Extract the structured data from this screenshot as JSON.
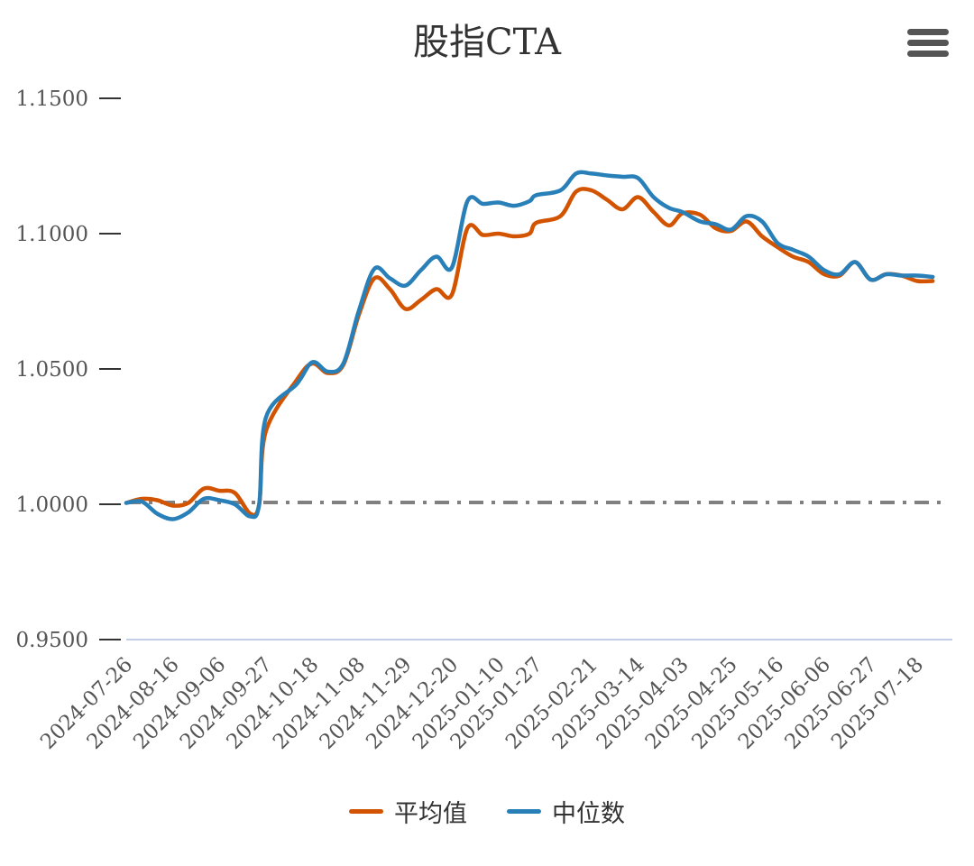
{
  "chart_data": {
    "type": "line",
    "title": "股指CTA",
    "xlabel": "",
    "ylabel": "",
    "ylim": [
      0.95,
      1.15
    ],
    "yticks": [
      "0.9500",
      "1.0000",
      "1.0500",
      "1.1000",
      "1.1500"
    ],
    "xticks": [
      "2024-07-26",
      "2024-08-16",
      "2024-09-06",
      "2024-09-27",
      "2024-10-18",
      "2024-11-08",
      "2024-11-29",
      "2024-12-20",
      "2025-01-10",
      "2025-01-27",
      "2025-02-21",
      "2025-03-14",
      "2025-04-03",
      "2025-04-25",
      "2025-05-16",
      "2025-06-06",
      "2025-06-27",
      "2025-07-18"
    ],
    "reference_line": {
      "y": 1.0,
      "style": "dash-dot",
      "color": "#808080"
    },
    "legend_position": "bottom-center",
    "grid": false,
    "series": [
      {
        "name": "平均值",
        "color": "#d35400",
        "x": [
          "2024-07-26",
          "2024-08-02",
          "2024-08-09",
          "2024-08-16",
          "2024-08-23",
          "2024-08-30",
          "2024-09-06",
          "2024-09-13",
          "2024-09-20",
          "2024-09-24",
          "2024-09-27",
          "2024-10-11",
          "2024-10-18",
          "2024-10-25",
          "2024-11-01",
          "2024-11-08",
          "2024-11-15",
          "2024-11-22",
          "2024-11-29",
          "2024-12-06",
          "2024-12-13",
          "2024-12-20",
          "2024-12-27",
          "2025-01-03",
          "2025-01-10",
          "2025-01-17",
          "2025-01-24",
          "2025-01-27",
          "2025-02-07",
          "2025-02-14",
          "2025-02-21",
          "2025-02-28",
          "2025-03-07",
          "2025-03-14",
          "2025-03-21",
          "2025-03-28",
          "2025-04-03",
          "2025-04-11",
          "2025-04-18",
          "2025-04-25",
          "2025-05-02",
          "2025-05-09",
          "2025-05-16",
          "2025-05-23",
          "2025-05-30",
          "2025-06-06",
          "2025-06-13",
          "2025-06-20",
          "2025-06-27",
          "2025-07-04",
          "2025-07-11",
          "2025-07-18",
          "2025-07-25"
        ],
        "values": [
          1.0005,
          1.002,
          1.0015,
          0.9995,
          1.0005,
          1.0058,
          1.005,
          1.0042,
          0.9965,
          1.0,
          1.027,
          1.046,
          1.052,
          1.0485,
          1.0515,
          1.07,
          1.0835,
          1.0795,
          1.0722,
          1.0755,
          1.0795,
          1.0775,
          1.102,
          1.0995,
          1.1,
          1.099,
          1.1,
          1.104,
          1.1065,
          1.1155,
          1.116,
          1.1125,
          1.109,
          1.1135,
          1.108,
          1.103,
          1.1075,
          1.107,
          1.102,
          1.101,
          1.1045,
          1.099,
          1.095,
          1.0915,
          1.0895,
          1.085,
          1.0845,
          1.0895,
          1.083,
          1.085,
          1.0845,
          1.0825,
          1.0825
        ]
      },
      {
        "name": "中位数",
        "color": "#2980b9",
        "x": [
          "2024-07-26",
          "2024-08-02",
          "2024-08-09",
          "2024-08-16",
          "2024-08-23",
          "2024-08-30",
          "2024-09-06",
          "2024-09-13",
          "2024-09-20",
          "2024-09-24",
          "2024-09-27",
          "2024-10-11",
          "2024-10-18",
          "2024-10-25",
          "2024-11-01",
          "2024-11-08",
          "2024-11-15",
          "2024-11-22",
          "2024-11-29",
          "2024-12-06",
          "2024-12-13",
          "2024-12-20",
          "2024-12-27",
          "2025-01-03",
          "2025-01-10",
          "2025-01-17",
          "2025-01-24",
          "2025-01-27",
          "2025-02-07",
          "2025-02-14",
          "2025-02-21",
          "2025-02-28",
          "2025-03-07",
          "2025-03-14",
          "2025-03-21",
          "2025-03-28",
          "2025-04-03",
          "2025-04-11",
          "2025-04-18",
          "2025-04-25",
          "2025-05-02",
          "2025-05-09",
          "2025-05-16",
          "2025-05-23",
          "2025-05-30",
          "2025-06-06",
          "2025-06-13",
          "2025-06-20",
          "2025-06-27",
          "2025-07-04",
          "2025-07-11",
          "2025-07-18",
          "2025-07-25"
        ],
        "values": [
          1.0005,
          1.001,
          0.9965,
          0.9945,
          0.997,
          1.002,
          1.0015,
          1.0,
          0.9955,
          1.0,
          1.032,
          1.0445,
          1.0525,
          1.049,
          1.052,
          1.0715,
          1.087,
          1.0835,
          1.0808,
          1.0865,
          1.0915,
          1.0875,
          1.112,
          1.111,
          1.1115,
          1.1103,
          1.112,
          1.1142,
          1.116,
          1.1222,
          1.1222,
          1.1215,
          1.121,
          1.1205,
          1.1135,
          1.1095,
          1.108,
          1.1045,
          1.1035,
          1.1015,
          1.1065,
          1.1045,
          1.0965,
          1.094,
          1.0915,
          1.0865,
          1.085,
          1.0895,
          1.083,
          1.085,
          1.0845,
          1.0845,
          1.084
        ]
      }
    ]
  }
}
